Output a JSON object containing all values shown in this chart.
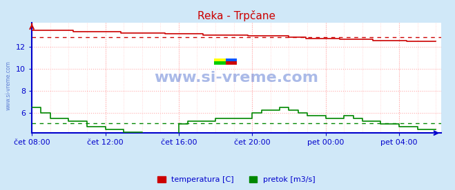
{
  "title": "Reka - Trpčane",
  "bg_color": "#d0e8f8",
  "plot_bg_color": "#ffffff",
  "temp_color": "#cc0000",
  "flow_color": "#008800",
  "axis_color": "#0000cc",
  "watermark_color": "#4466cc",
  "ylabel_ticks": [
    6,
    8,
    10,
    12
  ],
  "ylim": [
    4.2,
    14.2
  ],
  "xlim_hours": [
    0,
    22.3
  ],
  "xtick_labels": [
    "čet 08:00",
    "čet 12:00",
    "čet 16:00",
    "čet 20:00",
    "pet 00:00",
    "pet 04:00"
  ],
  "xtick_positions": [
    0,
    4,
    8,
    12,
    16,
    20
  ],
  "temp_avg": 12.9,
  "flow_avg": 5.1,
  "legend_labels": [
    "temperatura [C]",
    "pretok [m3/s]"
  ],
  "legend_colors": [
    "#cc0000",
    "#008800"
  ],
  "figsize": [
    6.59,
    2.76
  ],
  "dpi": 100
}
